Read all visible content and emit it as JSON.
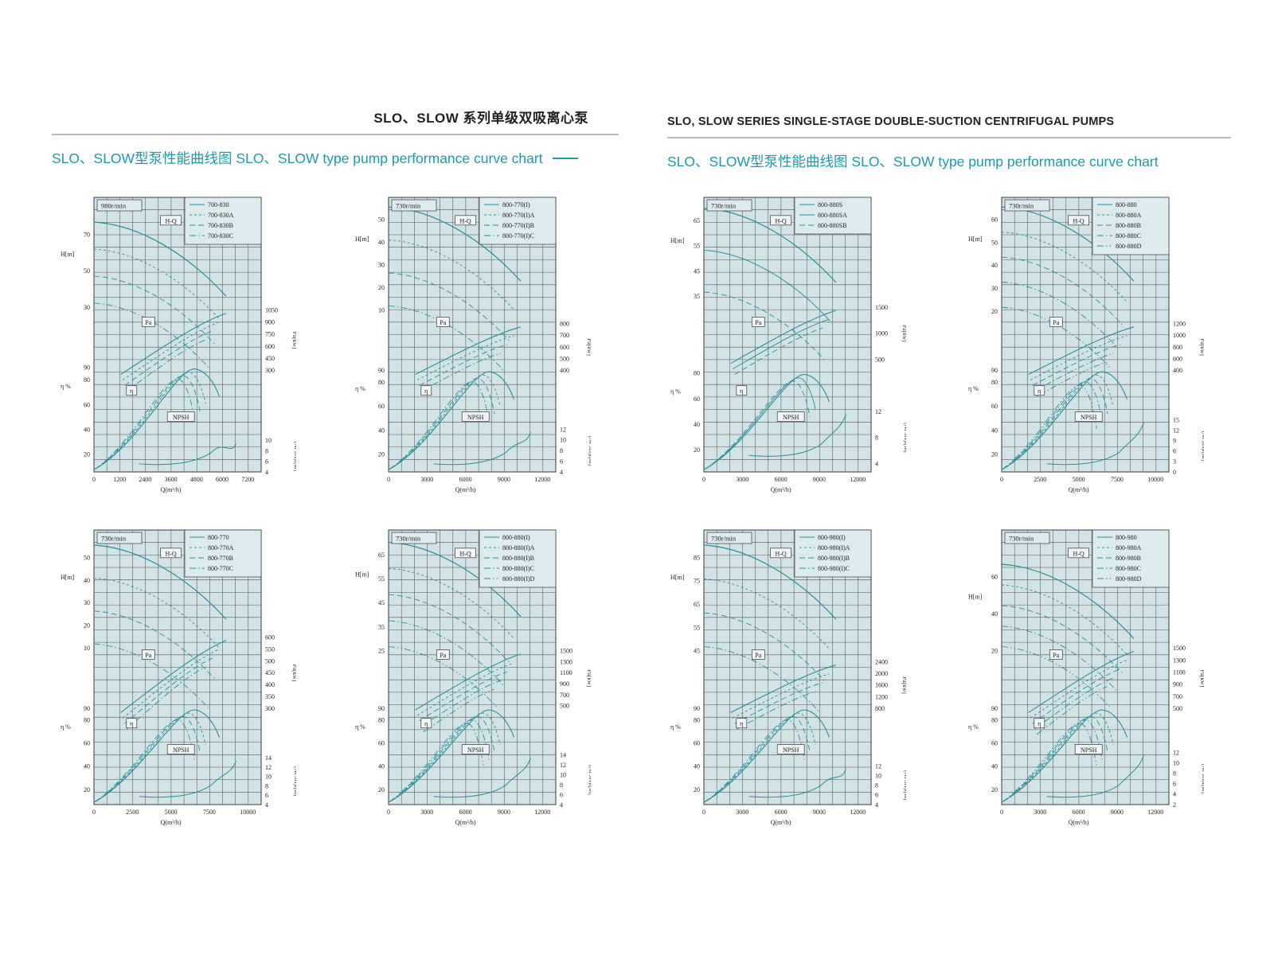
{
  "page": {
    "left": {
      "title": "SLO、SLOW 系列单级双吸离心泵",
      "subtitle": "SLO、SLOW型泵性能曲线图 SLO、SLOW type pump performance curve chart"
    },
    "right": {
      "title": "SLO, SLOW SERIES SINGLE-STAGE DOUBLE-SUCTION CENTRIFUGAL PUMPS",
      "subtitle": "SLO、SLOW型泵性能曲线图 SLO、SLOW type pump performance curve chart"
    }
  },
  "colors": {
    "accent": "#1b9aab",
    "curve": "#2a8e99",
    "plot_bg": "#d2e3e7",
    "panel_bg": "#dcebee",
    "grid": "#555555",
    "text": "#222222",
    "title": "#231f20",
    "rule": "#b9b9b9"
  },
  "chart_common": {
    "hq_label": "H-Q",
    "pa_label": "Pa",
    "eta_label": "η",
    "npsh_label": "NPSH"
  },
  "chart_data": [
    {
      "type": "line",
      "speed": "980r/min",
      "grid": true,
      "legend_position": "top-right",
      "series": [
        {
          "name": "700-830",
          "style": "solid"
        },
        {
          "name": "700-830A",
          "style": "dash2"
        },
        {
          "name": "700-830B",
          "style": "dash4"
        },
        {
          "name": "700-830C",
          "style": "dashdot"
        }
      ],
      "axes": {
        "h": {
          "label": "H[m]",
          "ticks": [
            70,
            50,
            30
          ],
          "band": [
            0.135,
            0.4
          ]
        },
        "eta": {
          "label": "η %",
          "ticks": [
            90,
            80,
            60,
            40,
            20
          ],
          "band": [
            0.62,
            0.935
          ]
        },
        "pa": {
          "label": "Pa[kw]",
          "ticks": [
            1050,
            900,
            750,
            600,
            450,
            300
          ],
          "band": [
            0.41,
            0.63
          ]
        },
        "npsh": {
          "label": "(NPSH)r[m]",
          "ticks": [
            10,
            8,
            6,
            4
          ],
          "band": [
            0.885,
            1.0
          ]
        },
        "x": {
          "label": "Q(m³/h)",
          "ticks": [
            0,
            1200,
            2400,
            3600,
            4800,
            6000,
            7200
          ]
        }
      }
    },
    {
      "type": "line",
      "speed": "730r/min",
      "grid": true,
      "legend_position": "top-right",
      "series": [
        {
          "name": "800-770(I)",
          "style": "solid"
        },
        {
          "name": "800-770(I)A",
          "style": "dash2"
        },
        {
          "name": "800-770(I)B",
          "style": "dash4"
        },
        {
          "name": "800-770(I)C",
          "style": "dashdot"
        }
      ],
      "axes": {
        "h": {
          "label": "H[m]",
          "ticks": [
            50,
            40,
            30,
            20,
            10
          ],
          "band": [
            0.08,
            0.41
          ]
        },
        "eta": {
          "label": "η %",
          "ticks": [
            90,
            80,
            60,
            40,
            20
          ],
          "band": [
            0.63,
            0.935
          ]
        },
        "pa": {
          "label": "Pa[kw]",
          "ticks": [
            800,
            700,
            600,
            500,
            400
          ],
          "band": [
            0.46,
            0.63
          ]
        },
        "npsh": {
          "label": "(NPSH)r[m]",
          "ticks": [
            12,
            10,
            8,
            6,
            4
          ],
          "band": [
            0.845,
            1.0
          ]
        },
        "x": {
          "label": "Q(m³/h)",
          "ticks": [
            0,
            3000,
            6000,
            9000,
            12000
          ]
        }
      }
    },
    {
      "type": "line",
      "speed": "730r/min",
      "grid": true,
      "legend_position": "top-right",
      "series": [
        {
          "name": "800-880S",
          "style": "solid"
        },
        {
          "name": "800-880SA",
          "style": "solid"
        },
        {
          "name": "800-880SB",
          "style": "dash4"
        }
      ],
      "axes": {
        "h": {
          "label": "H[m]",
          "ticks": [
            65,
            55,
            45,
            35
          ],
          "band": [
            0.085,
            0.36
          ]
        },
        "eta": {
          "label": "η %",
          "ticks": [
            80,
            60,
            40,
            20
          ],
          "band": [
            0.64,
            0.92
          ]
        },
        "pa": {
          "label": "Pa[kw]",
          "ticks": [
            1500,
            1000,
            500
          ],
          "band": [
            0.4,
            0.59
          ]
        },
        "npsh": {
          "label": "(NPSH)r[m]",
          "ticks": [
            12,
            8,
            4
          ],
          "band": [
            0.78,
            0.97
          ]
        },
        "x": {
          "label": "Q(m³/h)",
          "ticks": [
            0,
            3000,
            6000,
            9000,
            12000
          ]
        }
      }
    },
    {
      "type": "line",
      "speed": "730r/min",
      "grid": true,
      "legend_position": "top-right",
      "series": [
        {
          "name": "800-880",
          "style": "solid"
        },
        {
          "name": "800-880A",
          "style": "dash2"
        },
        {
          "name": "800-880B",
          "style": "dash4"
        },
        {
          "name": "800-880C",
          "style": "dashdot"
        },
        {
          "name": "800-880D",
          "style": "dashdotdot"
        }
      ],
      "axes": {
        "h": {
          "label": "H[m]",
          "ticks": [
            60,
            50,
            40,
            30,
            20
          ],
          "band": [
            0.08,
            0.415
          ]
        },
        "eta": {
          "label": "η %",
          "ticks": [
            90,
            80,
            60,
            40,
            20
          ],
          "band": [
            0.63,
            0.935
          ]
        },
        "pa": {
          "label": "Pa[kw]",
          "ticks": [
            1200,
            1000,
            800,
            600,
            400
          ],
          "band": [
            0.46,
            0.63
          ]
        },
        "npsh": {
          "label": "(NPSH)r[m]",
          "ticks": [
            15,
            12,
            9,
            6,
            3,
            0
          ],
          "band": [
            0.81,
            1.0
          ]
        },
        "x": {
          "label": "Q(m³/h)",
          "ticks": [
            0,
            2500,
            5000,
            7500,
            10000
          ]
        }
      }
    },
    {
      "type": "line",
      "speed": "730r/min",
      "grid": true,
      "legend_position": "top-right",
      "series": [
        {
          "name": "800-770",
          "style": "solid"
        },
        {
          "name": "800-770A",
          "style": "dash2"
        },
        {
          "name": "800-770B",
          "style": "dash4"
        },
        {
          "name": "800-770C",
          "style": "dashdot"
        }
      ],
      "axes": {
        "h": {
          "label": "H[m]",
          "ticks": [
            50,
            40,
            30,
            20,
            10
          ],
          "band": [
            0.1,
            0.43
          ]
        },
        "eta": {
          "label": "η %",
          "ticks": [
            90,
            80,
            60,
            40,
            20
          ],
          "band": [
            0.65,
            0.945
          ]
        },
        "pa": {
          "label": "Pa[kw]",
          "ticks": [
            600,
            550,
            500,
            450,
            400,
            350,
            300
          ],
          "band": [
            0.39,
            0.65
          ]
        },
        "npsh": {
          "label": "(NPSH)r[m]",
          "ticks": [
            14,
            12,
            10,
            8,
            6,
            4
          ],
          "band": [
            0.83,
            1.0
          ]
        },
        "x": {
          "label": "Q(m³/h)",
          "ticks": [
            0,
            2500,
            5000,
            7500,
            10000
          ]
        }
      }
    },
    {
      "type": "line",
      "speed": "730r/min",
      "grid": true,
      "legend_position": "top-right",
      "series": [
        {
          "name": "800-880(I)",
          "style": "solid"
        },
        {
          "name": "800-880(I)A",
          "style": "dash2"
        },
        {
          "name": "800-880(I)B",
          "style": "dash4"
        },
        {
          "name": "800-880(I)C",
          "style": "dashdot"
        },
        {
          "name": "800-880(I)D",
          "style": "dashdotdot"
        }
      ],
      "axes": {
        "h": {
          "label": "H[m]",
          "ticks": [
            65,
            55,
            45,
            35,
            25
          ],
          "band": [
            0.09,
            0.44
          ]
        },
        "eta": {
          "label": "η %",
          "ticks": [
            90,
            80,
            60,
            40,
            20
          ],
          "band": [
            0.65,
            0.945
          ]
        },
        "pa": {
          "label": "Pa[kw]",
          "ticks": [
            1500,
            1300,
            1100,
            900,
            700,
            500
          ],
          "band": [
            0.44,
            0.64
          ]
        },
        "npsh": {
          "label": "(NPSH)r[m]",
          "ticks": [
            14,
            12,
            10,
            8,
            6,
            4
          ],
          "band": [
            0.82,
            1.0
          ]
        },
        "x": {
          "label": "Q(m³/h)",
          "ticks": [
            0,
            3000,
            6000,
            9000,
            12000
          ]
        }
      }
    },
    {
      "type": "line",
      "speed": "730r/min",
      "grid": true,
      "legend_position": "top-right",
      "series": [
        {
          "name": "800-980(I)",
          "style": "solid"
        },
        {
          "name": "800-980(I)A",
          "style": "dash2"
        },
        {
          "name": "800-980(I)B",
          "style": "dash4"
        },
        {
          "name": "800-980(I)C",
          "style": "dashdot"
        }
      ],
      "axes": {
        "h": {
          "label": "H[m]",
          "ticks": [
            85,
            75,
            65,
            55,
            45
          ],
          "band": [
            0.1,
            0.44
          ]
        },
        "eta": {
          "label": "η %",
          "ticks": [
            90,
            80,
            60,
            40,
            20
          ],
          "band": [
            0.65,
            0.945
          ]
        },
        "pa": {
          "label": "Pa[kw]",
          "ticks": [
            2400,
            2000,
            1600,
            1200,
            800
          ],
          "band": [
            0.48,
            0.65
          ]
        },
        "npsh": {
          "label": "(NPSH)r[m]",
          "ticks": [
            12,
            10,
            8,
            6,
            4
          ],
          "band": [
            0.86,
            1.0
          ]
        },
        "x": {
          "label": "Q(m³/h)",
          "ticks": [
            0,
            3000,
            6000,
            9000,
            12000
          ]
        }
      }
    },
    {
      "type": "line",
      "speed": "730r/min",
      "grid": true,
      "legend_position": "top-right",
      "series": [
        {
          "name": "800-980",
          "style": "solid"
        },
        {
          "name": "800-980A",
          "style": "dash2"
        },
        {
          "name": "800-980B",
          "style": "dash4"
        },
        {
          "name": "800-980C",
          "style": "dashdot"
        },
        {
          "name": "800-980D",
          "style": "dashdotdot"
        }
      ],
      "axes": {
        "h": {
          "label": "H[m]",
          "ticks": [
            60,
            40,
            20
          ],
          "band": [
            0.17,
            0.44
          ]
        },
        "eta": {
          "label": "η %",
          "ticks": [
            90,
            80,
            60,
            40,
            20
          ],
          "band": [
            0.65,
            0.945
          ]
        },
        "pa": {
          "label": "Pa[kw]",
          "ticks": [
            1500,
            1300,
            1100,
            900,
            700,
            500
          ],
          "band": [
            0.43,
            0.65
          ]
        },
        "npsh": {
          "label": "(NPSH)r[m]",
          "ticks": [
            12,
            10,
            8,
            6,
            4,
            2
          ],
          "band": [
            0.81,
            1.0
          ]
        },
        "x": {
          "label": "Q(m³/h)",
          "ticks": [
            0,
            3000,
            6000,
            9000,
            12000
          ]
        }
      }
    }
  ]
}
